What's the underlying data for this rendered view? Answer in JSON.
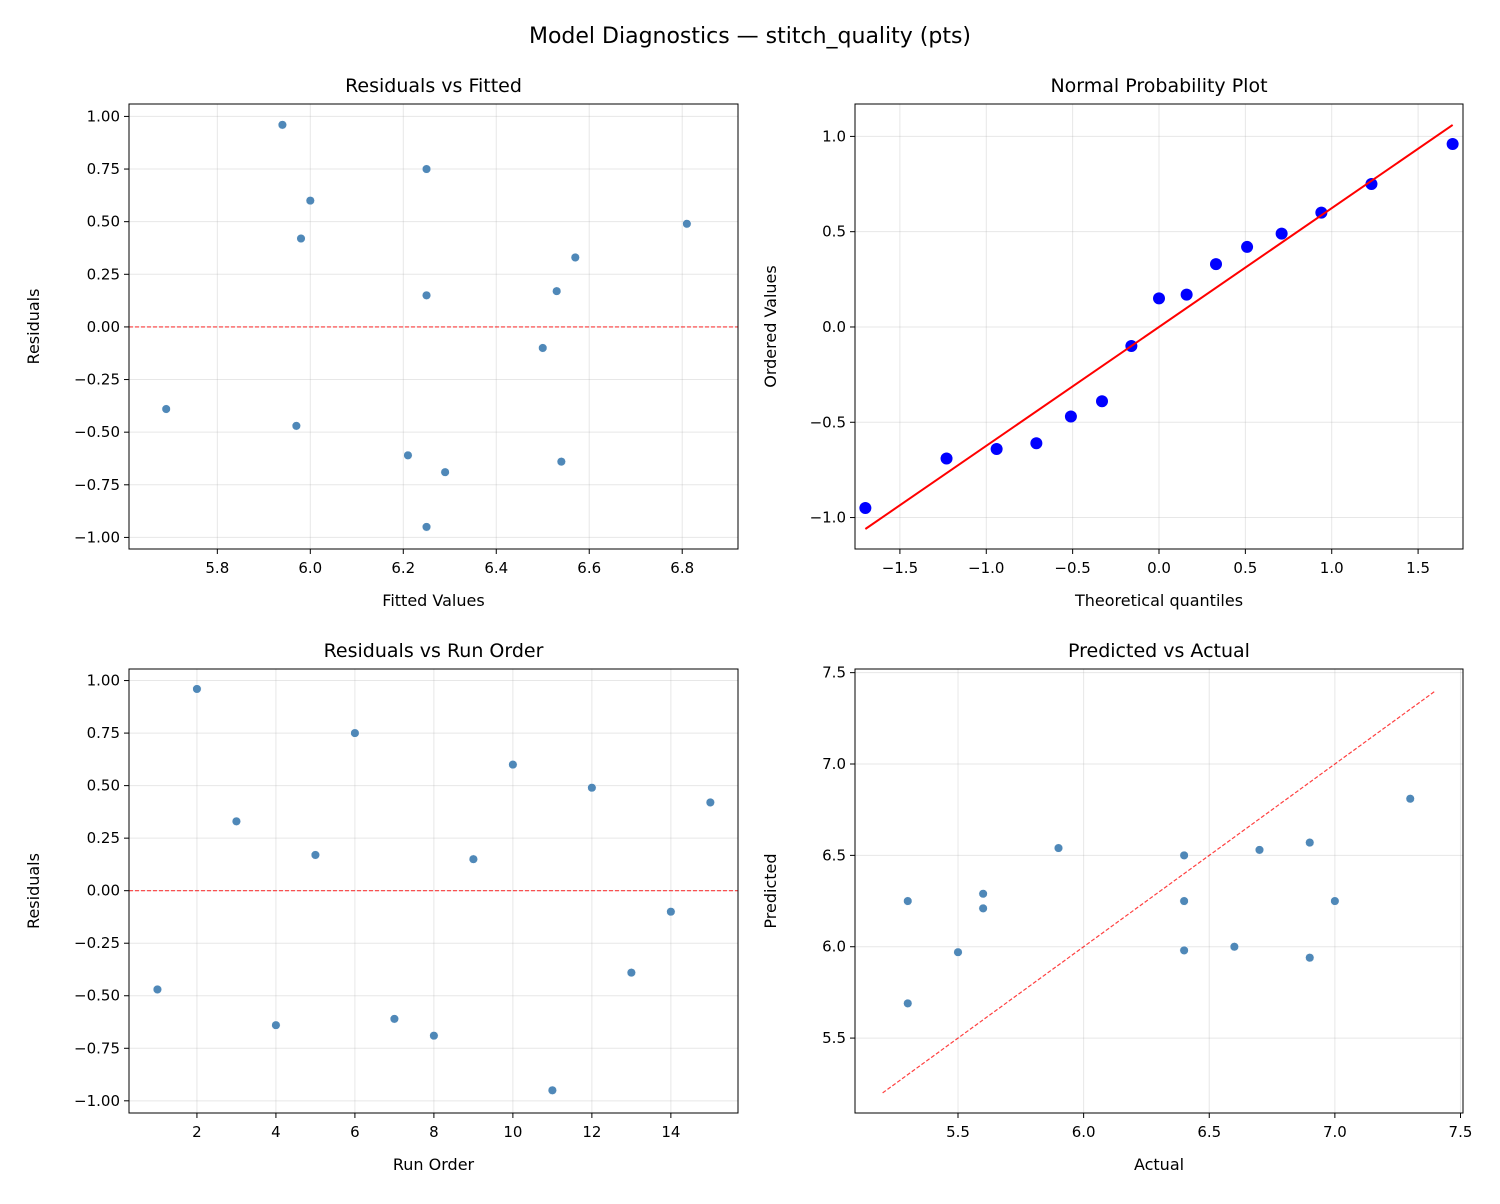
{
  "title": "Model Diagnostics — stitch_quality (pts)",
  "colors": {
    "scatter": "#4682b4",
    "qq_points": "#0000ff",
    "qq_line": "#ff0000",
    "reference": "#ff0000"
  },
  "chart_data": [
    {
      "type": "scatter",
      "title": "Residuals vs Fitted",
      "xlabel": "Fitted Values",
      "ylabel": "Residuals",
      "xlim": [
        5.61,
        6.92
      ],
      "ylim": [
        -1.055,
        1.059
      ],
      "grid": true,
      "xticks": [
        5.8,
        6.0,
        6.2,
        6.4,
        6.6,
        6.8
      ],
      "xtick_labels": [
        "5.8",
        "6.0",
        "6.2",
        "6.4",
        "6.6",
        "6.8"
      ],
      "yticks": [
        1.0,
        0.75,
        0.5,
        0.25,
        0.0,
        -0.25,
        -0.5,
        -0.75,
        -1.0
      ],
      "ytick_labels": [
        "1.00",
        "0.75",
        "0.50",
        "0.25",
        "0.00",
        "−0.25",
        "−0.50",
        "−0.75",
        "−1.00"
      ],
      "x": [
        5.97,
        5.94,
        6.57,
        6.54,
        6.53,
        6.25,
        6.21,
        6.29,
        6.25,
        6.0,
        6.25,
        6.81,
        5.69,
        6.5,
        5.98
      ],
      "y": [
        -0.47,
        0.96,
        0.33,
        -0.64,
        0.17,
        0.75,
        -0.61,
        -0.69,
        0.15,
        0.6,
        -0.95,
        0.49,
        -0.39,
        -0.1,
        0.42
      ],
      "reference_line": {
        "type": "horizontal",
        "y": 0.0,
        "style": "dashed"
      }
    },
    {
      "type": "scatter",
      "title": "Normal Probability Plot",
      "xlabel": "Theoretical quantiles",
      "ylabel": "Ordered Values",
      "xlim": [
        -1.76,
        1.76
      ],
      "ylim": [
        -1.165,
        1.17
      ],
      "grid": true,
      "xticks": [
        -1.5,
        -1.0,
        -0.5,
        0.0,
        0.5,
        1.0,
        1.5
      ],
      "xtick_labels": [
        "−1.5",
        "−1.0",
        "−0.5",
        "0.0",
        "0.5",
        "1.0",
        "1.5"
      ],
      "yticks": [
        1.0,
        0.5,
        0.0,
        -0.5,
        -1.0
      ],
      "ytick_labels": [
        "1.0",
        "0.5",
        "0.0",
        "−0.5",
        "−1.0"
      ],
      "x": [
        -1.7,
        -1.23,
        -0.94,
        -0.71,
        -0.51,
        -0.33,
        -0.16,
        0.0,
        0.16,
        0.33,
        0.51,
        0.71,
        0.94,
        1.23,
        1.7
      ],
      "y": [
        -0.95,
        -0.69,
        -0.64,
        -0.61,
        -0.47,
        -0.39,
        -0.1,
        0.15,
        0.17,
        0.33,
        0.42,
        0.49,
        0.6,
        0.75,
        0.96
      ],
      "fit_line": {
        "x": [
          -1.7,
          1.7
        ],
        "y": [
          -1.06,
          1.06
        ],
        "style": "solid"
      }
    },
    {
      "type": "scatter",
      "title": "Residuals vs Run Order",
      "xlabel": "Run Order",
      "ylabel": "Residuals",
      "xlim": [
        0.28,
        15.7
      ],
      "ylim": [
        -1.058,
        1.055
      ],
      "grid": true,
      "xticks": [
        2,
        4,
        6,
        8,
        10,
        12,
        14
      ],
      "xtick_labels": [
        "2",
        "4",
        "6",
        "8",
        "10",
        "12",
        "14"
      ],
      "yticks": [
        1.0,
        0.75,
        0.5,
        0.25,
        0.0,
        -0.25,
        -0.5,
        -0.75,
        -1.0
      ],
      "ytick_labels": [
        "1.00",
        "0.75",
        "0.50",
        "0.25",
        "0.00",
        "−0.25",
        "−0.50",
        "−0.75",
        "−1.00"
      ],
      "x": [
        1,
        2,
        3,
        4,
        5,
        6,
        7,
        8,
        9,
        10,
        11,
        12,
        13,
        14,
        15
      ],
      "y": [
        -0.47,
        0.96,
        0.33,
        -0.64,
        0.17,
        0.75,
        -0.61,
        -0.69,
        0.15,
        0.6,
        -0.95,
        0.49,
        -0.39,
        -0.1,
        0.42
      ],
      "reference_line": {
        "type": "horizontal",
        "y": 0.0,
        "style": "dashed"
      }
    },
    {
      "type": "scatter",
      "title": "Predicted vs Actual",
      "xlabel": "Actual",
      "ylabel": "Predicted",
      "xlim": [
        5.09,
        7.51
      ],
      "ylim": [
        5.09,
        7.52
      ],
      "grid": true,
      "xticks": [
        5.5,
        6.0,
        6.5,
        7.0,
        7.5
      ],
      "xtick_labels": [
        "5.5",
        "6.0",
        "6.5",
        "7.0",
        "7.5"
      ],
      "yticks": [
        5.5,
        6.0,
        6.5,
        7.0,
        7.5
      ],
      "ytick_labels": [
        "5.5",
        "6.0",
        "6.5",
        "7.0",
        "7.5"
      ],
      "x": [
        5.5,
        6.9,
        6.9,
        5.9,
        6.7,
        7.0,
        5.6,
        5.6,
        6.4,
        6.6,
        5.3,
        7.3,
        5.3,
        6.4,
        6.4
      ],
      "y": [
        5.97,
        5.94,
        6.57,
        6.54,
        6.53,
        6.25,
        6.21,
        6.29,
        6.25,
        6.0,
        6.25,
        6.81,
        5.69,
        6.5,
        5.98
      ],
      "reference_line": {
        "type": "diagonal",
        "x": [
          5.2,
          7.4
        ],
        "y": [
          5.2,
          7.4
        ],
        "style": "dashed"
      }
    }
  ]
}
